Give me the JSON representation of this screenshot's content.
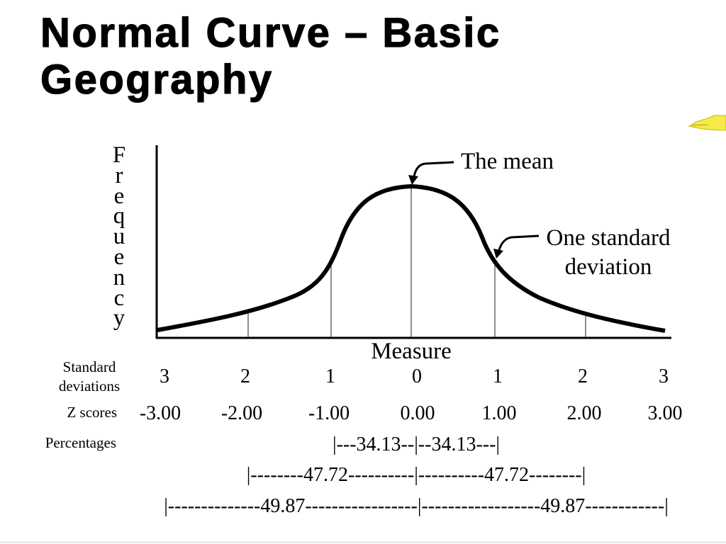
{
  "slide": {
    "title": {
      "line1": "Normal Curve – Basic",
      "line2": "Geography"
    },
    "corner_icon": "pencil-icon"
  },
  "diagram": {
    "y_axis_label": "Frequency",
    "x_axis_label": "Measure",
    "annotations": {
      "mean": "The mean",
      "one_sd": "One standard deviation"
    },
    "rows": {
      "standard_deviations": {
        "label": "Standard deviations",
        "values": [
          "3",
          "2",
          "1",
          "0",
          "1",
          "2",
          "3"
        ]
      },
      "z_scores": {
        "label": "Z scores",
        "values": [
          "-3.00",
          "-2.00",
          "-1.00",
          "0.00",
          "1.00",
          "2.00",
          "3.00"
        ]
      },
      "percentages": {
        "label": "Percentages",
        "lines": [
          "|---34.13--|--34.13---|",
          "|--------47.72----------|----------47.72--------|",
          "|--------------49.87-----------------|------------------49.87------------|"
        ]
      }
    },
    "colors": {
      "curve": "#000000",
      "icon": "#f7ea48"
    }
  }
}
